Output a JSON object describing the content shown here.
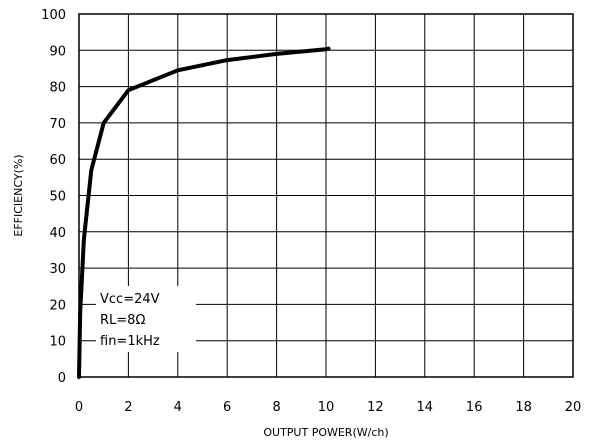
{
  "chart_data": {
    "type": "line",
    "xlabel": "OUTPUT POWER(W/ch)",
    "ylabel": "EFFICIENCY(%)",
    "xlim": [
      0,
      20
    ],
    "ylim": [
      0,
      100
    ],
    "x_ticks": [
      "0",
      "2",
      "4",
      "6",
      "8",
      "10",
      "12",
      "14",
      "16",
      "18",
      "20"
    ],
    "y_ticks": [
      "0",
      "10",
      "20",
      "30",
      "40",
      "50",
      "60",
      "70",
      "80",
      "90",
      "100"
    ],
    "grid": true,
    "annotations": [
      "Vcc=24V",
      "RL=8Ω",
      "fin=1kHz"
    ],
    "series": [
      {
        "x": [
          0.0,
          0.05,
          0.2,
          0.5,
          1.0,
          2.0,
          4.0,
          6.0,
          8.0,
          10.0,
          10.1
        ],
        "y": [
          0,
          18,
          38,
          57,
          70,
          79,
          84.5,
          87.3,
          89,
          90.3,
          90.5
        ]
      }
    ]
  }
}
